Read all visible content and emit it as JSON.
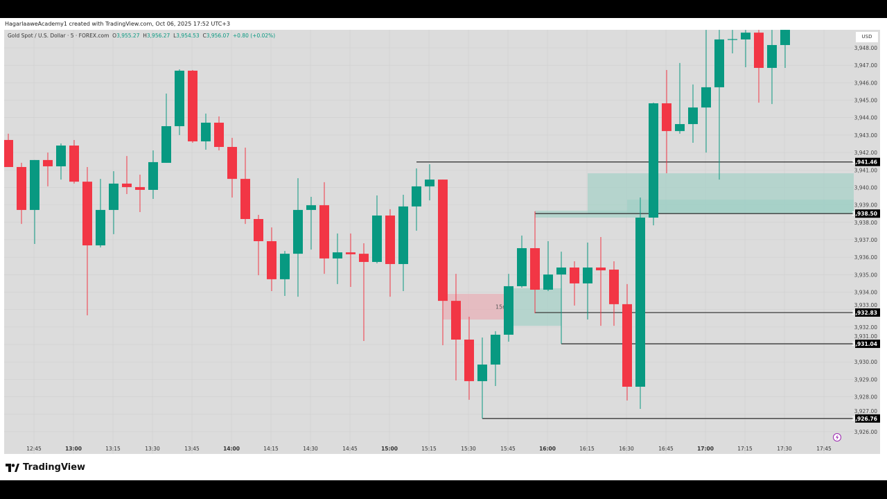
{
  "credit": "HagarlaaweAcademy1 created with TradingView.com, Oct 06, 2025 17:52 UTC+3",
  "legend": {
    "symbol": "Gold Spot / U.S. Dollar · 5 · FOREX.com",
    "o_label": "O",
    "o": "3,955.27",
    "h_label": "H",
    "h": "3,956.27",
    "l_label": "L",
    "l": "3,954.53",
    "c_label": "C",
    "c": "3,956.07",
    "change": "+0.80 (+0.02%)"
  },
  "currency": "USD",
  "brand": "TradingView",
  "icons": {
    "brand": "tradingview-logo-icon",
    "flash": "lightning-icon"
  },
  "colors": {
    "up": "#089981",
    "down": "#f23645",
    "background": "#dcdcdc",
    "demand_zone": "#9fcfc4",
    "supply_zone": "#e9aab2",
    "level_line": "#3a3a3a"
  },
  "chart_data": {
    "type": "candlestick",
    "title": "Gold Spot / U.S. Dollar · 5 · FOREX.com",
    "ylim": [
      3924.73,
      3949.03
    ],
    "grid": true,
    "y_ticks": [
      "3,926.00",
      "3,927.00",
      "3,928.00",
      "3,929.00",
      "3,930.00",
      "3,931.00",
      "3,932.00",
      "3,933.00",
      "3,934.00",
      "3,935.00",
      "3,936.00",
      "3,937.00",
      "3,938.00",
      "3,939.00",
      "3,940.00",
      "3,941.00",
      "3,942.00",
      "3,943.00",
      "3,944.00",
      "3,945.00",
      "3,946.00",
      "3,947.00",
      "3,948.00"
    ],
    "x_ticks": [
      {
        "label": "12:45",
        "bold": false
      },
      {
        "label": "13:00",
        "bold": true
      },
      {
        "label": "13:15",
        "bold": false
      },
      {
        "label": "13:30",
        "bold": false
      },
      {
        "label": "13:45",
        "bold": false
      },
      {
        "label": "14:00",
        "bold": true
      },
      {
        "label": "14:15",
        "bold": false
      },
      {
        "label": "14:30",
        "bold": false
      },
      {
        "label": "14:45",
        "bold": false
      },
      {
        "label": "15:00",
        "bold": true
      },
      {
        "label": "15:15",
        "bold": false
      },
      {
        "label": "15:30",
        "bold": false
      },
      {
        "label": "15:45",
        "bold": false
      },
      {
        "label": "16:00",
        "bold": true
      },
      {
        "label": "16:15",
        "bold": false
      },
      {
        "label": "16:30",
        "bold": false
      },
      {
        "label": "16:45",
        "bold": false
      },
      {
        "label": "17:00",
        "bold": true
      },
      {
        "label": "17:15",
        "bold": false
      },
      {
        "label": "17:30",
        "bold": false
      },
      {
        "label": "17:45",
        "bold": false
      }
    ],
    "candles": [
      {
        "t": "12:35",
        "o": 3942.72,
        "h": 3943.08,
        "l": 3941.17,
        "c": 3941.17
      },
      {
        "t": "12:40",
        "o": 3941.17,
        "h": 3941.41,
        "l": 3937.91,
        "c": 3938.71
      },
      {
        "t": "12:45",
        "o": 3938.71,
        "h": 3941.57,
        "l": 3936.76,
        "c": 3941.57
      },
      {
        "t": "12:50",
        "o": 3941.57,
        "h": 3942.0,
        "l": 3940.06,
        "c": 3941.21
      },
      {
        "t": "12:55",
        "o": 3941.21,
        "h": 3942.52,
        "l": 3940.45,
        "c": 3942.4
      },
      {
        "t": "13:00",
        "o": 3942.4,
        "h": 3942.72,
        "l": 3940.22,
        "c": 3940.33
      },
      {
        "t": "13:05",
        "o": 3940.33,
        "h": 3941.17,
        "l": 3932.67,
        "c": 3936.68
      },
      {
        "t": "13:10",
        "o": 3936.68,
        "h": 3940.49,
        "l": 3936.56,
        "c": 3938.71
      },
      {
        "t": "13:15",
        "o": 3938.71,
        "h": 3940.93,
        "l": 3937.32,
        "c": 3940.22
      },
      {
        "t": "13:20",
        "o": 3940.22,
        "h": 3941.8,
        "l": 3939.62,
        "c": 3940.02
      },
      {
        "t": "13:25",
        "o": 3940.02,
        "h": 3940.73,
        "l": 3938.59,
        "c": 3939.86
      },
      {
        "t": "13:30",
        "o": 3939.86,
        "h": 3942.12,
        "l": 3939.34,
        "c": 3941.45
      },
      {
        "t": "13:35",
        "o": 3941.41,
        "h": 3945.38,
        "l": 3941.41,
        "c": 3943.51
      },
      {
        "t": "13:40",
        "o": 3943.51,
        "h": 3946.77,
        "l": 3943.0,
        "c": 3946.69
      },
      {
        "t": "13:45",
        "o": 3946.69,
        "h": 3946.73,
        "l": 3942.56,
        "c": 3942.64
      },
      {
        "t": "13:50",
        "o": 3942.64,
        "h": 3944.23,
        "l": 3942.16,
        "c": 3943.71
      },
      {
        "t": "13:55",
        "o": 3943.71,
        "h": 3944.07,
        "l": 3942.12,
        "c": 3942.32
      },
      {
        "t": "14:00",
        "o": 3942.32,
        "h": 3942.84,
        "l": 3939.42,
        "c": 3940.49
      },
      {
        "t": "14:05",
        "o": 3940.49,
        "h": 3942.28,
        "l": 3937.91,
        "c": 3938.19
      },
      {
        "t": "14:10",
        "o": 3938.19,
        "h": 3938.43,
        "l": 3934.97,
        "c": 3936.92
      },
      {
        "t": "14:15",
        "o": 3936.92,
        "h": 3937.71,
        "l": 3934.06,
        "c": 3934.74
      },
      {
        "t": "14:20",
        "o": 3934.74,
        "h": 3936.36,
        "l": 3933.78,
        "c": 3936.2
      },
      {
        "t": "14:25",
        "o": 3936.2,
        "h": 3940.53,
        "l": 3933.74,
        "c": 3938.71
      },
      {
        "t": "14:30",
        "o": 3938.71,
        "h": 3939.46,
        "l": 3936.44,
        "c": 3938.98
      },
      {
        "t": "14:35",
        "o": 3938.98,
        "h": 3940.3,
        "l": 3935.05,
        "c": 3935.93
      },
      {
        "t": "14:40",
        "o": 3935.93,
        "h": 3937.36,
        "l": 3934.46,
        "c": 3936.28
      },
      {
        "t": "14:45",
        "o": 3936.28,
        "h": 3937.36,
        "l": 3934.3,
        "c": 3936.17
      },
      {
        "t": "14:50",
        "o": 3936.2,
        "h": 3936.8,
        "l": 3931.2,
        "c": 3935.73
      },
      {
        "t": "14:55",
        "o": 3935.73,
        "h": 3939.54,
        "l": 3935.65,
        "c": 3938.39
      },
      {
        "t": "15:00",
        "o": 3938.39,
        "h": 3938.75,
        "l": 3933.74,
        "c": 3935.61
      },
      {
        "t": "15:05",
        "o": 3935.61,
        "h": 3939.58,
        "l": 3934.06,
        "c": 3938.91
      },
      {
        "t": "15:10",
        "o": 3938.91,
        "h": 3941.09,
        "l": 3937.52,
        "c": 3940.06
      },
      {
        "t": "15:15",
        "o": 3940.06,
        "h": 3941.33,
        "l": 3939.26,
        "c": 3940.45
      },
      {
        "t": "15:20",
        "o": 3940.45,
        "h": 3940.45,
        "l": 3930.96,
        "c": 3933.5
      },
      {
        "t": "15:25",
        "o": 3933.5,
        "h": 3935.05,
        "l": 3928.94,
        "c": 3931.28
      },
      {
        "t": "15:30",
        "o": 3931.28,
        "h": 3932.59,
        "l": 3927.83,
        "c": 3928.9
      },
      {
        "t": "15:35",
        "o": 3928.9,
        "h": 3931.4,
        "l": 3926.76,
        "c": 3929.85
      },
      {
        "t": "15:40",
        "o": 3929.85,
        "h": 3931.76,
        "l": 3928.62,
        "c": 3931.56
      },
      {
        "t": "15:45",
        "o": 3931.56,
        "h": 3935.05,
        "l": 3931.16,
        "c": 3934.34
      },
      {
        "t": "15:50",
        "o": 3934.34,
        "h": 3937.24,
        "l": 3934.26,
        "c": 3936.52
      },
      {
        "t": "15:55",
        "o": 3936.52,
        "h": 3938.63,
        "l": 3932.79,
        "c": 3934.14
      },
      {
        "t": "16:00",
        "o": 3934.14,
        "h": 3936.92,
        "l": 3934.06,
        "c": 3935.01
      },
      {
        "t": "16:05",
        "o": 3935.01,
        "h": 3936.32,
        "l": 3931.04,
        "c": 3935.41
      },
      {
        "t": "16:10",
        "o": 3935.41,
        "h": 3935.77,
        "l": 3933.23,
        "c": 3934.5
      },
      {
        "t": "16:15",
        "o": 3934.5,
        "h": 3936.84,
        "l": 3932.43,
        "c": 3935.41
      },
      {
        "t": "16:20",
        "o": 3935.41,
        "h": 3937.16,
        "l": 3932.07,
        "c": 3935.25
      },
      {
        "t": "16:25",
        "o": 3935.29,
        "h": 3935.77,
        "l": 3932.07,
        "c": 3933.31
      },
      {
        "t": "16:30",
        "o": 3933.31,
        "h": 3934.46,
        "l": 3927.79,
        "c": 3928.58
      },
      {
        "t": "16:35",
        "o": 3928.58,
        "h": 3939.42,
        "l": 3927.31,
        "c": 3938.27
      },
      {
        "t": "16:40",
        "o": 3938.27,
        "h": 3944.86,
        "l": 3937.83,
        "c": 3944.82
      },
      {
        "t": "16:45",
        "o": 3944.82,
        "h": 3946.73,
        "l": 3940.81,
        "c": 3943.23
      },
      {
        "t": "16:50",
        "o": 3943.23,
        "h": 3947.13,
        "l": 3943.08,
        "c": 3943.63
      },
      {
        "t": "16:55",
        "o": 3943.63,
        "h": 3945.9,
        "l": 3942.56,
        "c": 3944.58
      },
      {
        "t": "17:00",
        "o": 3944.58,
        "h": 3949.03,
        "l": 3942.0,
        "c": 3945.74
      },
      {
        "t": "17:05",
        "o": 3945.74,
        "h": 3949.03,
        "l": 3940.45,
        "c": 3948.48
      },
      {
        "t": "17:10",
        "o": 3948.48,
        "h": 3949.03,
        "l": 3947.68,
        "c": 3948.5
      },
      {
        "t": "17:15",
        "o": 3948.48,
        "h": 3949.03,
        "l": 3946.89,
        "c": 3948.87
      },
      {
        "t": "17:20",
        "o": 3948.87,
        "h": 3949.03,
        "l": 3944.86,
        "c": 3946.85
      },
      {
        "t": "17:25",
        "o": 3946.85,
        "h": 3949.03,
        "l": 3944.78,
        "c": 3948.16
      },
      {
        "t": "17:30",
        "o": 3948.16,
        "h": 3949.03,
        "l": 3946.85,
        "c": 3949.03
      }
    ],
    "levels": [
      {
        "price": 3941.46,
        "label": "3,941.46",
        "from": "15:10"
      },
      {
        "price": 3938.5,
        "label": "3,938.50",
        "from": "15:55"
      },
      {
        "price": 3932.83,
        "label": "3,932.83",
        "from": "15:55"
      },
      {
        "price": 3931.04,
        "label": "3,931.04",
        "from": "16:05"
      },
      {
        "price": 3926.76,
        "label": "3,926.76",
        "from": "15:35"
      }
    ],
    "zones": [
      {
        "kind": "supply",
        "from": "15:20",
        "to": "15:45",
        "top": 3933.9,
        "bottom": 3932.43,
        "label": "15m"
      },
      {
        "kind": "demand",
        "from": "15:45",
        "to": "16:05",
        "top": 3934.22,
        "bottom": 3932.07
      },
      {
        "kind": "demand",
        "from": "15:55",
        "to": "16:40",
        "top": 3938.67,
        "bottom": 3938.27
      },
      {
        "kind": "demand",
        "from": "16:15",
        "to": "end",
        "top": 3940.81,
        "bottom": 3938.51
      },
      {
        "kind": "demand",
        "from": "16:30",
        "to": "end",
        "top": 3939.3,
        "bottom": 3938.51
      }
    ]
  }
}
